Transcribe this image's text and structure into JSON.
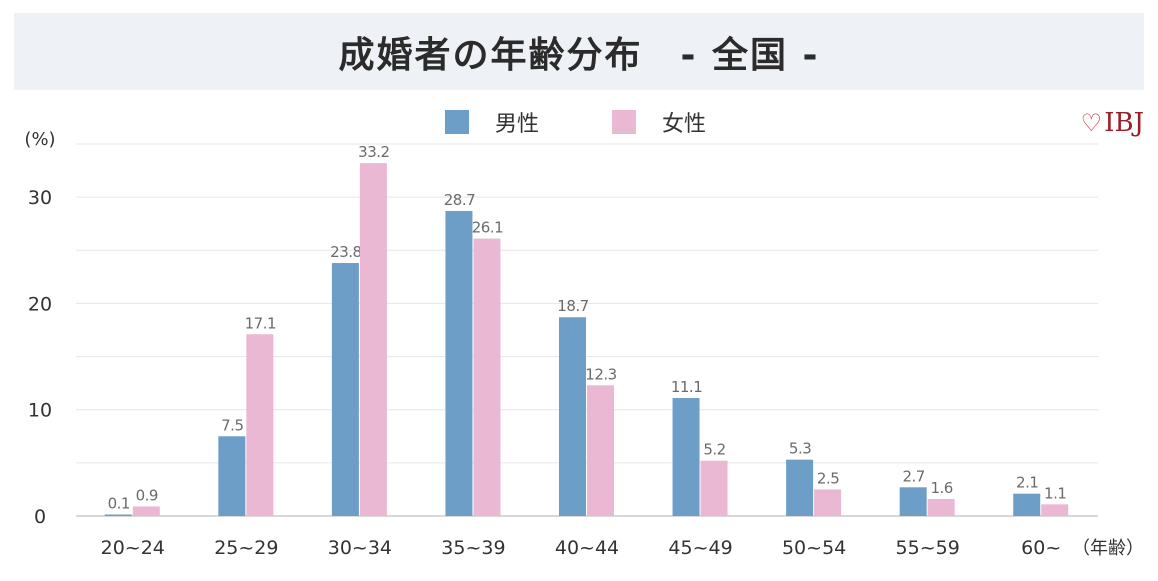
{
  "title": "成婚者の年齢分布　- 全国 -",
  "brand": {
    "logo_text": "IBJ",
    "icon": "heart-outline-icon",
    "color": "#9a1f27"
  },
  "colors": {
    "male": "#6d9ec8",
    "female": "#eab8d3",
    "grid": "#e6e6e6",
    "axis": "#cccccc"
  },
  "chart_data": {
    "type": "bar",
    "categories": [
      "20~24",
      "25~29",
      "30~34",
      "35~39",
      "40~44",
      "45~49",
      "50~54",
      "55~59",
      "60~"
    ],
    "series": [
      {
        "name": "男性",
        "values": [
          0.1,
          7.5,
          23.8,
          28.7,
          18.7,
          11.1,
          5.3,
          2.7,
          2.1
        ]
      },
      {
        "name": "女性",
        "values": [
          0.9,
          17.1,
          33.2,
          26.1,
          12.3,
          5.2,
          2.5,
          1.6,
          1.1
        ]
      }
    ],
    "ylabel": "(%)",
    "xlabel": "（年齢）",
    "ylim": [
      0,
      35
    ],
    "yticks": [
      0,
      10,
      20,
      30
    ],
    "grid": true,
    "legend": "top-center"
  }
}
